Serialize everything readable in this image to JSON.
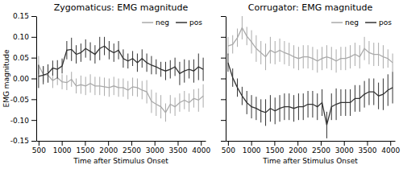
{
  "chart_data": [
    {
      "type": "line",
      "title": "Zygomaticus: EMG magnitude",
      "xlabel": "Time after Stimulus Onset",
      "ylabel": "EMG magnitude",
      "x": [
        500,
        601.428571,
        702.857143,
        804.285714,
        905.714286,
        1007.142857,
        1108.571429,
        1210,
        1311.428571,
        1412.857143,
        1514.285714,
        1615.714286,
        1717.142857,
        1818.571429,
        1920,
        2021.428571,
        2122.857143,
        2224.285714,
        2325.714286,
        2427.142857,
        2528.571429,
        2630,
        2731.428571,
        2832.857143,
        2934.285714,
        3035.714286,
        3137.142857,
        3238.571429,
        3340,
        3441.428571,
        3542.857143,
        3644.285714,
        3745.714286,
        3847.142857,
        3948.571429,
        4050
      ],
      "series": [
        {
          "name": "neg",
          "color": "#aaaaaa",
          "values": [
            0.032,
            0.01,
            0.008,
            -0.005,
            0.002,
            -0.008,
            -0.01,
            -0.002,
            -0.018,
            -0.015,
            -0.018,
            -0.012,
            -0.018,
            -0.018,
            -0.02,
            -0.022,
            -0.018,
            -0.022,
            -0.022,
            -0.028,
            -0.02,
            -0.022,
            -0.028,
            -0.032,
            -0.055,
            -0.062,
            -0.068,
            -0.082,
            -0.062,
            -0.068,
            -0.058,
            -0.052,
            -0.058,
            -0.048,
            -0.052,
            -0.042
          ],
          "errors": [
            0.022,
            0.018,
            0.018,
            0.018,
            0.018,
            0.018,
            0.018,
            0.018,
            0.018,
            0.022,
            0.022,
            0.022,
            0.022,
            0.022,
            0.022,
            0.022,
            0.022,
            0.022,
            0.022,
            0.022,
            0.022,
            0.022,
            0.022,
            0.028,
            0.028,
            0.028,
            0.028,
            0.022,
            0.022,
            0.022,
            0.022,
            0.022,
            0.022,
            0.022,
            0.028,
            0.028
          ]
        },
        {
          "name": "pos",
          "color": "#333333",
          "values": [
            0.005,
            0.008,
            0.012,
            0.025,
            0.022,
            0.03,
            0.068,
            0.07,
            0.058,
            0.062,
            0.072,
            0.065,
            0.058,
            0.072,
            0.078,
            0.068,
            0.062,
            0.068,
            0.048,
            0.042,
            0.048,
            0.038,
            0.048,
            0.038,
            0.032,
            0.028,
            0.022,
            0.018,
            0.022,
            0.028,
            0.012,
            0.018,
            0.022,
            0.018,
            0.028,
            0.022
          ],
          "errors": [
            0.028,
            0.022,
            0.022,
            0.018,
            0.022,
            0.018,
            0.022,
            0.028,
            0.022,
            0.022,
            0.022,
            0.022,
            0.022,
            0.028,
            0.022,
            0.022,
            0.022,
            0.022,
            0.022,
            0.018,
            0.018,
            0.022,
            0.022,
            0.022,
            0.022,
            0.018,
            0.018,
            0.022,
            0.022,
            0.022,
            0.028,
            0.028,
            0.022,
            0.028,
            0.032,
            0.028
          ]
        }
      ],
      "xlim": [
        450,
        4100
      ],
      "ylim": [
        -0.15,
        0.15
      ],
      "xticks": [
        500,
        1000,
        1500,
        2000,
        2500,
        3000,
        3500,
        4000
      ],
      "yticks": [
        -0.15,
        {
          "value": -0.1,
          "label": "-0.10"
        },
        -0.05,
        {
          "value": 0,
          "label": "0.00"
        },
        0.05,
        {
          "value": 0.1,
          "label": "0.10"
        },
        0.15
      ],
      "legend": "upper right"
    },
    {
      "type": "line",
      "title": "Corrugator: EMG magnitude",
      "xlabel": "Time after Stimulus Onset",
      "x": [
        500,
        601.428571,
        702.857143,
        804.285714,
        905.714286,
        1007.142857,
        1108.571429,
        1210,
        1311.428571,
        1412.857143,
        1514.285714,
        1615.714286,
        1717.142857,
        1818.571429,
        1920,
        2021.428571,
        2122.857143,
        2224.285714,
        2325.714286,
        2427.142857,
        2528.571429,
        2630,
        2731.428571,
        2832.857143,
        2934.285714,
        3035.714286,
        3137.142857,
        3238.571429,
        3340,
        3441.428571,
        3542.857143,
        3644.285714,
        3745.714286,
        3847.142857,
        3948.571429,
        4050
      ],
      "series": [
        {
          "name": "neg",
          "color": "#aaaaaa",
          "values": [
            0.078,
            0.082,
            0.098,
            0.122,
            0.102,
            0.088,
            0.072,
            0.062,
            0.052,
            0.068,
            0.062,
            0.068,
            0.062,
            0.058,
            0.052,
            0.048,
            0.052,
            0.052,
            0.048,
            0.042,
            0.048,
            0.052,
            0.048,
            0.042,
            0.048,
            0.048,
            0.052,
            0.058,
            0.052,
            0.072,
            0.062,
            0.058,
            0.058,
            0.052,
            0.048,
            0.038
          ],
          "errors": [
            0.022,
            0.022,
            0.022,
            0.028,
            0.022,
            0.028,
            0.032,
            0.028,
            0.032,
            0.032,
            0.028,
            0.028,
            0.028,
            0.028,
            0.028,
            0.028,
            0.028,
            0.028,
            0.028,
            0.028,
            0.028,
            0.028,
            0.028,
            0.028,
            0.028,
            0.028,
            0.028,
            0.028,
            0.028,
            0.028,
            0.028,
            0.028,
            0.028,
            0.028,
            0.022,
            0.022
          ]
        },
        {
          "name": "pos",
          "color": "#333333",
          "values": [
            0.038,
            0.002,
            -0.022,
            -0.042,
            -0.058,
            -0.068,
            -0.072,
            -0.078,
            -0.082,
            -0.072,
            -0.078,
            -0.072,
            -0.068,
            -0.068,
            -0.072,
            -0.068,
            -0.068,
            -0.062,
            -0.062,
            -0.068,
            -0.058,
            -0.112,
            -0.068,
            -0.062,
            -0.058,
            -0.058,
            -0.058,
            -0.048,
            -0.048,
            -0.038,
            -0.032,
            -0.032,
            -0.042,
            -0.038,
            -0.028,
            -0.022
          ],
          "errors": [
            0.022,
            0.022,
            0.022,
            0.022,
            0.028,
            0.028,
            0.028,
            0.028,
            0.032,
            0.032,
            0.032,
            0.032,
            0.032,
            0.032,
            0.032,
            0.032,
            0.032,
            0.032,
            0.032,
            0.032,
            0.032,
            0.032,
            0.032,
            0.038,
            0.032,
            0.032,
            0.032,
            0.032,
            0.032,
            0.032,
            0.032,
            0.032,
            0.032,
            0.038,
            0.038,
            0.038
          ]
        }
      ],
      "xlim": [
        450,
        4100
      ],
      "ylim": [
        -0.15,
        0.15
      ],
      "xticks": [
        500,
        1000,
        1500,
        2000,
        2500,
        3000,
        3500,
        4000
      ],
      "yticks": [
        -0.15,
        {
          "value": -0.1,
          "label": "-0.10"
        },
        -0.05,
        {
          "value": 0,
          "label": "0.00"
        },
        0.05,
        {
          "value": 0.1,
          "label": "0.10"
        },
        0.15
      ],
      "tick_labels": "x",
      "legend": "upper right"
    }
  ]
}
